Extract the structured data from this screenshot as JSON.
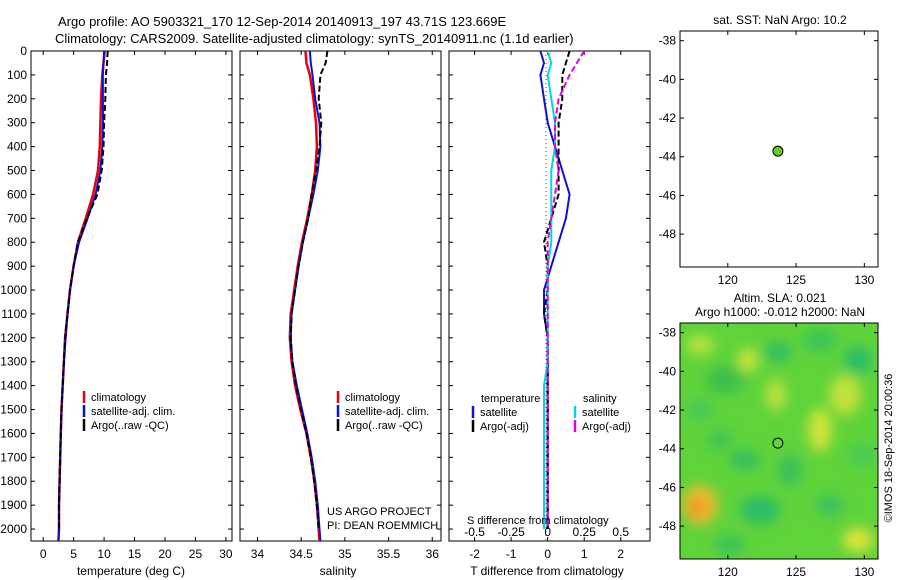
{
  "header": {
    "line1": "Argo profile: AO 5903321_170 12-Sep-2014 20140913_197 43.71S 123.669E",
    "line2": "Climatology: CARS2009. Satellite-adjusted climatology: synTS_20140911.nc (1.1d earlier)"
  },
  "colors": {
    "climatology": "#e8000b",
    "satellite_clim": "#1010d0",
    "argo": "#000000",
    "sal_satellite": "#00d8d8",
    "sal_argo": "#e000e0",
    "sst_dot": "#66cc22"
  },
  "chart_data": [
    {
      "type": "line",
      "id": "temperature",
      "xlabel": "temperature (deg C)",
      "xlim": [
        -2,
        31
      ],
      "ylim": [
        0,
        2050
      ],
      "xticks": [
        "0",
        "5",
        "10",
        "15",
        "20",
        "25",
        "30"
      ],
      "yticks": [
        "0",
        "100",
        "200",
        "300",
        "400",
        "500",
        "600",
        "700",
        "800",
        "900",
        "1000",
        "1100",
        "1200",
        "1300",
        "1400",
        "1500",
        "1600",
        "1700",
        "1800",
        "1900",
        "2000"
      ],
      "legend": [
        "climatology",
        "satellite-adj. clim.",
        "Argo(..raw -QC)"
      ],
      "series": [
        {
          "name": "climatology",
          "x": [
            10.1,
            9.9,
            9.7,
            9.5,
            9.4,
            9.3,
            9.0,
            8.2,
            7.0,
            5.7,
            5.0,
            4.4,
            4.0,
            3.6,
            3.4,
            3.2,
            3.0,
            2.9,
            2.8,
            2.7,
            2.6,
            2.6,
            2.5
          ],
          "y": [
            0,
            50,
            100,
            200,
            300,
            400,
            500,
            600,
            700,
            800,
            900,
            1000,
            1100,
            1200,
            1300,
            1400,
            1500,
            1600,
            1700,
            1800,
            1900,
            2000,
            2050
          ]
        },
        {
          "name": "satellite-adj. clim.",
          "x": [
            10.0,
            9.9,
            9.8,
            9.8,
            9.8,
            9.7,
            9.4,
            8.6,
            7.3,
            5.9,
            5.0,
            4.4,
            4.0,
            3.7,
            3.4,
            3.2,
            3.0,
            2.9,
            2.8,
            2.7,
            2.6,
            2.6,
            2.5
          ],
          "y": [
            0,
            50,
            100,
            200,
            300,
            400,
            500,
            600,
            700,
            800,
            900,
            1000,
            1100,
            1200,
            1300,
            1400,
            1500,
            1600,
            1700,
            1800,
            1900,
            2000,
            2050
          ]
        },
        {
          "name": "Argo(..raw -QC)",
          "x": [
            10.6,
            10.5,
            10.3,
            10.2,
            10.0,
            9.9,
            9.6,
            8.9,
            7.2,
            5.7,
            5.0,
            4.4,
            4.0,
            3.6,
            3.4,
            3.2,
            3.0,
            2.9,
            2.8,
            2.7,
            2.6,
            2.6
          ],
          "y": [
            0,
            50,
            100,
            200,
            300,
            400,
            500,
            600,
            700,
            800,
            900,
            1000,
            1100,
            1200,
            1300,
            1400,
            1500,
            1600,
            1700,
            1800,
            1900,
            2000
          ]
        }
      ]
    },
    {
      "type": "line",
      "id": "salinity",
      "xlabel": "salinity",
      "xlim": [
        33.8,
        36.1
      ],
      "ylim": [
        0,
        2050
      ],
      "xticks": [
        "34",
        "34.5",
        "35",
        "35.5",
        "36"
      ],
      "legend": [
        "climatology",
        "satellite-adj. clim.",
        "Argo(..raw -QC)"
      ],
      "note": [
        "US ARGO PROJECT",
        "PI: DEAN ROEMMICH"
      ],
      "series": [
        {
          "name": "climatology",
          "x": [
            34.55,
            34.56,
            34.6,
            34.64,
            34.67,
            34.68,
            34.66,
            34.62,
            34.57,
            34.51,
            34.46,
            34.42,
            34.38,
            34.37,
            34.39,
            34.43,
            34.49,
            34.56,
            34.61,
            34.65,
            34.68,
            34.7,
            34.71
          ],
          "y": [
            0,
            50,
            100,
            200,
            300,
            400,
            500,
            600,
            700,
            800,
            900,
            1000,
            1100,
            1200,
            1300,
            1400,
            1500,
            1600,
            1700,
            1800,
            1900,
            2000,
            2050
          ]
        },
        {
          "name": "satellite-adj. clim.",
          "x": [
            34.6,
            34.61,
            34.63,
            34.66,
            34.71,
            34.72,
            34.69,
            34.64,
            34.58,
            34.52,
            34.47,
            34.43,
            34.39,
            34.38,
            34.4,
            34.45,
            34.51,
            34.57,
            34.62,
            34.66,
            34.69,
            34.71,
            34.72
          ],
          "y": [
            0,
            50,
            100,
            200,
            300,
            400,
            500,
            600,
            700,
            800,
            900,
            1000,
            1100,
            1200,
            1300,
            1400,
            1500,
            1600,
            1700,
            1800,
            1900,
            2000,
            2050
          ]
        },
        {
          "name": "Argo(..raw -QC)",
          "x": [
            34.8,
            34.78,
            34.72,
            34.7,
            34.73,
            34.71,
            34.67,
            34.62,
            34.58,
            34.52,
            34.47,
            34.43,
            34.39,
            34.38,
            34.4,
            34.44,
            34.5,
            34.56,
            34.61,
            34.65,
            34.68,
            34.7
          ],
          "y": [
            0,
            50,
            100,
            200,
            300,
            400,
            500,
            600,
            700,
            800,
            900,
            1000,
            1100,
            1200,
            1300,
            1400,
            1500,
            1600,
            1700,
            1800,
            1900,
            2000
          ]
        }
      ]
    },
    {
      "type": "line",
      "id": "difference",
      "xlabel": "T difference from climatology",
      "xlabel2": "S difference from climatology",
      "xlim": [
        -2.7,
        2.8
      ],
      "ylim": [
        0,
        2050
      ],
      "xticks": [
        "-2",
        "-1",
        "0",
        "1",
        "2"
      ],
      "xticks_top": [
        "-0.5",
        "-0.25",
        "0",
        "0.25",
        "0.5"
      ],
      "legend_titles": [
        "temperature",
        "salinity"
      ],
      "legend_temperature": [
        "satellite",
        "Argo(-adj)"
      ],
      "legend_salinity": [
        "satellite",
        "Argo(-adj)"
      ],
      "series": [
        {
          "name": "temperature satellite",
          "x": [
            -0.2,
            -0.1,
            -0.2,
            -0.1,
            0.0,
            0.2,
            0.4,
            0.6,
            0.5,
            0.3,
            0.1,
            -0.1,
            -0.1,
            0.0,
            0.0,
            0.0,
            0.0,
            0.0,
            0.0,
            0.0,
            0.0,
            0.0
          ],
          "y": [
            0,
            50,
            100,
            200,
            300,
            400,
            500,
            600,
            700,
            800,
            900,
            1000,
            1100,
            1200,
            1300,
            1400,
            1500,
            1600,
            1700,
            1800,
            1900,
            2000
          ]
        },
        {
          "name": "temperature Argo(-adj)",
          "x": [
            0.6,
            0.5,
            0.4,
            0.4,
            0.3,
            0.3,
            0.3,
            0.3,
            0.1,
            -0.1,
            0.0,
            0.0,
            -0.1,
            0.0,
            0.0,
            0.0,
            0.0,
            0.0,
            0.0,
            0.0,
            0.0,
            0.0
          ],
          "y": [
            0,
            50,
            100,
            200,
            300,
            400,
            500,
            600,
            700,
            800,
            900,
            1000,
            1100,
            1200,
            1300,
            1400,
            1500,
            1600,
            1700,
            1800,
            1900,
            2000
          ]
        },
        {
          "name": "salinity satellite",
          "x": [
            0.0,
            0.1,
            0.0,
            0.1,
            0.2,
            0.2,
            0.1,
            0.1,
            0.1,
            0.1,
            0.0,
            0.0,
            0.0,
            0.0,
            0.0,
            -0.1,
            -0.1,
            -0.1,
            -0.1,
            -0.1,
            -0.1,
            -0.1
          ],
          "y": [
            0,
            50,
            100,
            200,
            300,
            400,
            500,
            600,
            700,
            800,
            900,
            1000,
            1100,
            1200,
            1300,
            1400,
            1500,
            1600,
            1700,
            1800,
            1900,
            2000
          ]
        },
        {
          "name": "salinity Argo(-adj)",
          "x": [
            1.0,
            0.8,
            0.6,
            0.3,
            0.2,
            0.2,
            0.3,
            0.2,
            0.1,
            0.0,
            0.0,
            0.0,
            0.0,
            0.0,
            0.0,
            0.0,
            0.0,
            0.0,
            0.0,
            0.0,
            0.0,
            0.0
          ],
          "y": [
            0,
            50,
            100,
            200,
            300,
            400,
            500,
            600,
            700,
            800,
            900,
            1000,
            1100,
            1200,
            1300,
            1400,
            1500,
            1600,
            1700,
            1800,
            1900,
            2000
          ]
        }
      ]
    },
    {
      "type": "scatter",
      "id": "sst_map",
      "title": "sat. SST: NaN Argo: 10.2",
      "xlim": [
        116.5,
        131
      ],
      "ylim": [
        -49.7,
        -37.5
      ],
      "xticks": [
        "120",
        "125",
        "130"
      ],
      "yticks": [
        "-38",
        "-40",
        "-42",
        "-44",
        "-46",
        "-48"
      ],
      "points": [
        {
          "x": 123.67,
          "y": -43.71
        }
      ]
    },
    {
      "type": "heatmap",
      "id": "sla_map",
      "title1": "Altim. SLA: 0.021",
      "title2": "Argo h1000: -0.012 h2000: NaN",
      "xlim": [
        116.5,
        131
      ],
      "ylim": [
        -49.7,
        -37.5
      ],
      "xticks": [
        "120",
        "125",
        "130"
      ],
      "yticks": [
        "-38",
        "-40",
        "-42",
        "-44",
        "-46",
        "-48"
      ],
      "marker": {
        "x": 123.67,
        "y": -43.71
      },
      "side_label": "©IMOS 18-Sep-2014 20:00:36"
    }
  ]
}
